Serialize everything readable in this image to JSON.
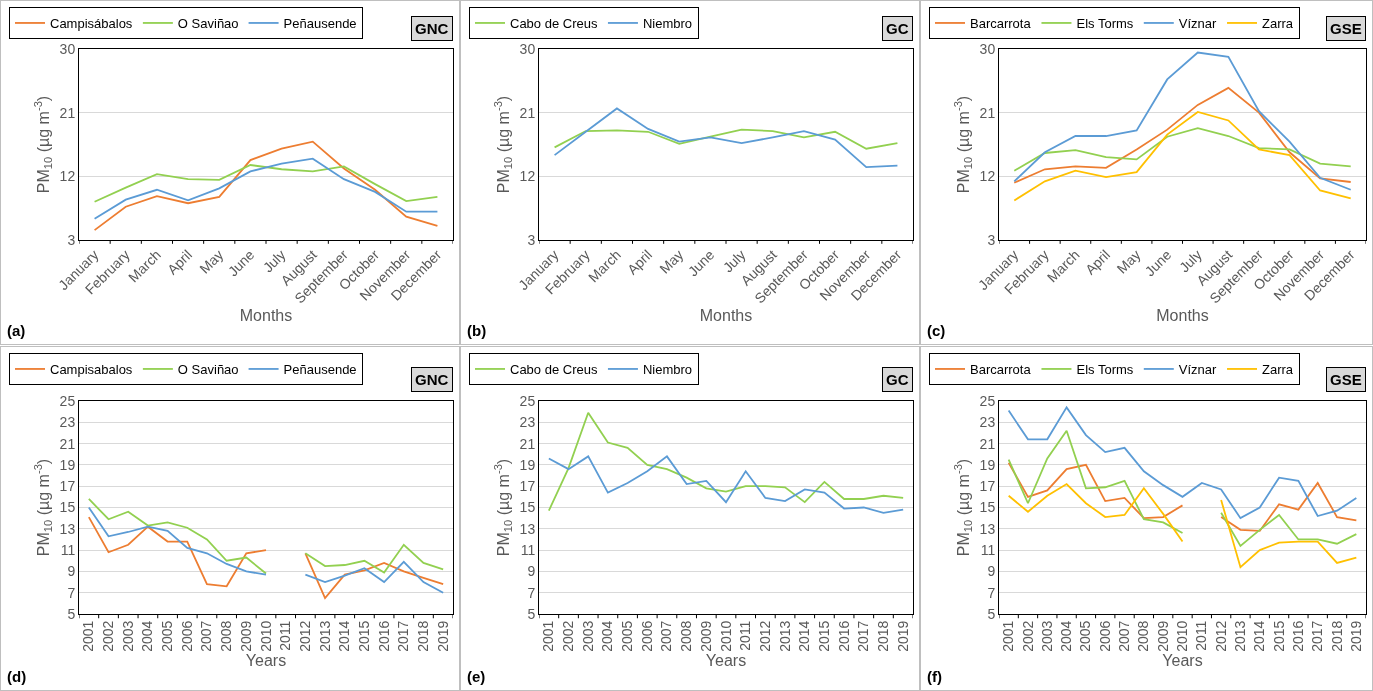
{
  "chart_data": [
    {
      "type": "line",
      "categories": [
        "January",
        "February",
        "March",
        "April",
        "May",
        "June",
        "July",
        "August",
        "September",
        "October",
        "November",
        "December"
      ],
      "xlabel": "Months",
      "ylabel": "PM$_{10}$ (µg m$^{-3}$)",
      "ylim": [
        3,
        30
      ],
      "yticks": [
        3,
        12,
        21,
        30
      ],
      "grid": "y",
      "legend": "top left",
      "annotations": [
        "GNC",
        "(a)"
      ],
      "series": [
        {
          "name": "Campisábalos",
          "color": "#ed7d31",
          "values": [
            4.4,
            7.7,
            9.2,
            8.2,
            9.1,
            14.3,
            15.9,
            16.9,
            13.1,
            10.1,
            6.3,
            5.0
          ]
        },
        {
          "name": "O Saviñao",
          "color": "#92d050",
          "values": [
            8.4,
            10.4,
            12.3,
            11.6,
            11.5,
            13.6,
            13.0,
            12.7,
            13.4,
            10.9,
            8.5,
            9.1
          ]
        },
        {
          "name": "Peñausende",
          "color": "#5b9bd5",
          "values": [
            6.0,
            8.7,
            10.1,
            8.6,
            10.3,
            12.7,
            13.8,
            14.5,
            11.6,
            9.8,
            7.0,
            7.0
          ]
        }
      ]
    },
    {
      "type": "line",
      "categories": [
        "January",
        "February",
        "March",
        "April",
        "May",
        "June",
        "July",
        "August",
        "September",
        "October",
        "November",
        "December"
      ],
      "xlabel": "Months",
      "ylabel": "PM$_{10}$ (µg m$^{-3}$)",
      "ylim": [
        3,
        30
      ],
      "yticks": [
        3,
        12,
        21,
        30
      ],
      "grid": "y",
      "legend": "top left",
      "annotations": [
        "GC",
        "(b)"
      ],
      "series": [
        {
          "name": "Cabo de Creus",
          "color": "#92d050",
          "values": [
            16.1,
            18.4,
            18.5,
            18.3,
            16.6,
            17.6,
            18.6,
            18.4,
            17.5,
            18.3,
            15.9,
            16.7
          ]
        },
        {
          "name": "Niembro",
          "color": "#5b9bd5",
          "values": [
            15.0,
            18.3,
            21.6,
            18.7,
            16.9,
            17.5,
            16.7,
            17.5,
            18.4,
            17.2,
            13.3,
            13.5
          ]
        }
      ]
    },
    {
      "type": "line",
      "categories": [
        "January",
        "February",
        "March",
        "April",
        "May",
        "June",
        "July",
        "August",
        "September",
        "October",
        "November",
        "December"
      ],
      "xlabel": "Months",
      "ylabel": "PM$_{10}$ (µg m$^{-3}$)",
      "ylim": [
        3,
        30
      ],
      "yticks": [
        3,
        12,
        21,
        30
      ],
      "grid": "y",
      "legend": "top left",
      "annotations": [
        "GSE",
        "(c)"
      ],
      "series": [
        {
          "name": "Barcarrota",
          "color": "#ed7d31",
          "values": [
            11.1,
            13.0,
            13.4,
            13.2,
            15.8,
            18.6,
            22.1,
            24.5,
            21.0,
            15.4,
            11.7,
            11.2
          ]
        },
        {
          "name": "Els Torms",
          "color": "#92d050",
          "values": [
            12.8,
            15.3,
            15.7,
            14.7,
            14.4,
            17.6,
            18.8,
            17.7,
            16.0,
            15.8,
            13.8,
            13.4
          ]
        },
        {
          "name": "Víznar",
          "color": "#5b9bd5",
          "values": [
            11.3,
            15.4,
            17.7,
            17.7,
            18.5,
            25.7,
            29.5,
            28.9,
            21.2,
            16.9,
            11.8,
            10.1
          ]
        },
        {
          "name": "Zarra",
          "color": "#ffc000",
          "values": [
            8.6,
            11.3,
            12.8,
            11.9,
            12.6,
            17.9,
            21.1,
            19.9,
            15.8,
            15.0,
            10.0,
            8.9
          ]
        }
      ]
    },
    {
      "type": "line",
      "categories": [
        "2001",
        "2002",
        "2003",
        "2004",
        "2005",
        "2006",
        "2007",
        "2008",
        "2009",
        "2010",
        "2011",
        "2012",
        "2013",
        "2014",
        "2015",
        "2016",
        "2017",
        "2018",
        "2019"
      ],
      "xlabel": "Years",
      "ylabel": "PM$_{10}$ (µg m$^{-3}$)",
      "ylim": [
        5,
        25
      ],
      "yticks": [
        5,
        7,
        9,
        11,
        13,
        15,
        17,
        19,
        21,
        23,
        25
      ],
      "grid": "y",
      "legend": "top left",
      "annotations": [
        "GNC",
        "(d)"
      ],
      "series": [
        {
          "name": "Campisabalos",
          "color": "#ed7d31",
          "values": [
            14.1,
            10.8,
            11.5,
            13.2,
            11.8,
            11.8,
            7.8,
            7.6,
            10.7,
            11.0,
            null,
            10.7,
            6.5,
            8.7,
            9.1,
            9.8,
            9.0,
            8.4,
            7.8
          ]
        },
        {
          "name": "O Saviñao",
          "color": "#92d050",
          "values": [
            15.8,
            13.9,
            14.6,
            13.3,
            13.6,
            13.1,
            12.0,
            10.0,
            10.3,
            8.8,
            null,
            10.7,
            9.5,
            9.6,
            10.0,
            8.9,
            11.5,
            9.8,
            9.2
          ]
        },
        {
          "name": "Peñausende",
          "color": "#5b9bd5",
          "values": [
            15.0,
            12.3,
            12.7,
            13.2,
            12.8,
            11.2,
            10.7,
            9.7,
            9.0,
            8.7,
            null,
            8.7,
            8.0,
            8.6,
            9.3,
            8.0,
            9.9,
            8.0,
            7.0
          ]
        }
      ]
    },
    {
      "type": "line",
      "categories": [
        "2001",
        "2002",
        "2003",
        "2004",
        "2005",
        "2006",
        "2007",
        "2008",
        "2009",
        "2010",
        "2011",
        "2012",
        "2013",
        "2014",
        "2015",
        "2016",
        "2017",
        "2018",
        "2019"
      ],
      "xlabel": "Years",
      "ylabel": "PM$_{10}$ (µg m$^{-3}$)",
      "ylim": [
        5,
        25
      ],
      "yticks": [
        5,
        7,
        9,
        11,
        13,
        15,
        17,
        19,
        21,
        23,
        25
      ],
      "grid": "y",
      "legend": "top left",
      "annotations": [
        "GC",
        "(e)"
      ],
      "series": [
        {
          "name": "Cabo de Creus",
          "color": "#92d050",
          "values": [
            14.7,
            18.7,
            23.9,
            21.1,
            20.6,
            19.0,
            18.6,
            17.8,
            16.8,
            16.5,
            17.0,
            17.0,
            16.9,
            15.5,
            17.4,
            15.8,
            15.8,
            16.1,
            15.9
          ]
        },
        {
          "name": "Niembro",
          "color": "#5b9bd5",
          "values": [
            19.6,
            18.6,
            19.8,
            16.4,
            17.3,
            18.4,
            19.8,
            17.2,
            17.5,
            15.5,
            18.4,
            15.9,
            15.6,
            16.7,
            16.4,
            14.9,
            15.0,
            14.5,
            14.8
          ]
        }
      ]
    },
    {
      "type": "line",
      "categories": [
        "2001",
        "2002",
        "2003",
        "2004",
        "2005",
        "2006",
        "2007",
        "2008",
        "2009",
        "2010",
        "2011",
        "2012",
        "2013",
        "2014",
        "2015",
        "2016",
        "2017",
        "2018",
        "2019"
      ],
      "xlabel": "Years",
      "ylabel": "PM$_{10}$ (µg m$^{-3}$)",
      "ylim": [
        5,
        25
      ],
      "yticks": [
        5,
        7,
        9,
        11,
        13,
        15,
        17,
        19,
        21,
        23,
        25
      ],
      "grid": "y",
      "legend": "top left",
      "annotations": [
        "GSE",
        "(f)"
      ],
      "series": [
        {
          "name": "Barcarrota",
          "color": "#ed7d31",
          "values": [
            19.2,
            16.0,
            16.6,
            18.6,
            19.0,
            15.6,
            15.9,
            14.0,
            14.1,
            15.2,
            null,
            14.1,
            12.9,
            12.8,
            15.3,
            14.8,
            17.3,
            14.1,
            13.8
          ]
        },
        {
          "name": "Els Torms",
          "color": "#92d050",
          "values": [
            19.5,
            15.4,
            19.6,
            22.2,
            16.8,
            16.9,
            17.5,
            13.9,
            13.6,
            12.6,
            null,
            14.5,
            11.4,
            12.9,
            14.3,
            12.0,
            12.0,
            11.6,
            12.5
          ]
        },
        {
          "name": "Víznar",
          "color": "#5b9bd5",
          "values": [
            24.1,
            21.4,
            21.4,
            24.4,
            21.8,
            20.2,
            20.6,
            18.4,
            17.1,
            16.0,
            17.3,
            16.7,
            14.0,
            15.0,
            17.8,
            17.5,
            14.2,
            14.7,
            15.9
          ]
        },
        {
          "name": "Zarra",
          "color": "#ffc000",
          "values": [
            16.1,
            14.6,
            16.1,
            17.2,
            15.4,
            14.1,
            14.3,
            16.8,
            14.4,
            11.8,
            null,
            15.7,
            9.4,
            11.0,
            11.7,
            11.8,
            11.8,
            9.8,
            10.3
          ]
        }
      ]
    }
  ]
}
